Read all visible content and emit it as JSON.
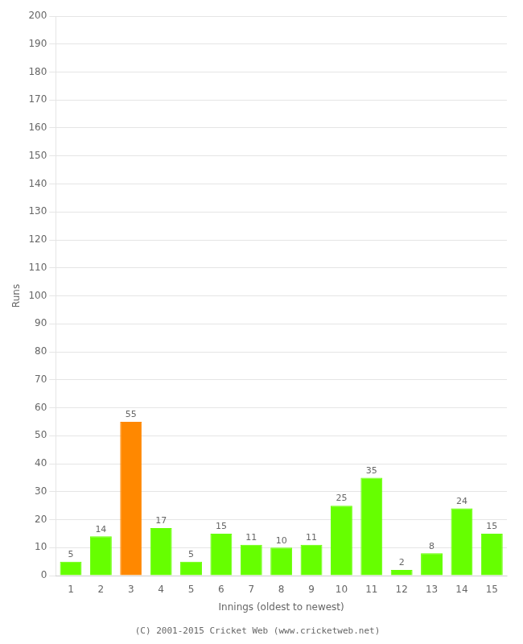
{
  "chart_data": {
    "type": "bar",
    "categories": [
      "1",
      "2",
      "3",
      "4",
      "5",
      "6",
      "7",
      "8",
      "9",
      "10",
      "11",
      "12",
      "13",
      "14",
      "15"
    ],
    "values": [
      5,
      14,
      55,
      17,
      5,
      15,
      11,
      10,
      11,
      25,
      35,
      2,
      8,
      24,
      15
    ],
    "colors": [
      "#66ff00",
      "#66ff00",
      "#ff8800",
      "#66ff00",
      "#66ff00",
      "#66ff00",
      "#66ff00",
      "#66ff00",
      "#66ff00",
      "#66ff00",
      "#66ff00",
      "#66ff00",
      "#66ff00",
      "#66ff00",
      "#66ff00"
    ],
    "x_label": "Innings (oldest to newest)",
    "y_label": "Runs",
    "ylim": [
      0,
      200
    ],
    "yticks": [
      0,
      10,
      20,
      30,
      40,
      50,
      60,
      70,
      80,
      90,
      100,
      110,
      120,
      130,
      140,
      150,
      160,
      170,
      180,
      190,
      200
    ],
    "grid": true,
    "data_labels": true,
    "annotations": [
      "(C) 2001-2015 Cricket Web (www.cricketweb.net)"
    ]
  }
}
